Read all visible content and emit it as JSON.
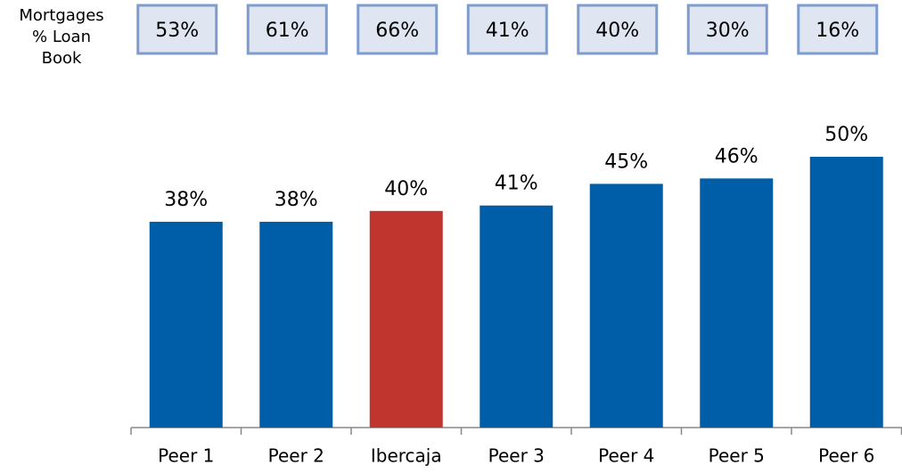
{
  "chart_data": {
    "type": "bar",
    "categories": [
      "Peer 1",
      "Peer 2",
      "Ibercaja",
      "Peer 3",
      "Peer 4",
      "Peer 5",
      "Peer 6"
    ],
    "values": [
      38,
      38,
      40,
      41,
      45,
      46,
      50
    ],
    "value_labels": [
      "38%",
      "38%",
      "40%",
      "41%",
      "45%",
      "46%",
      "50%"
    ],
    "colors": [
      "#005ea8",
      "#005ea8",
      "#c1352f",
      "#005ea8",
      "#005ea8",
      "#005ea8",
      "#005ea8"
    ],
    "mortgages": {
      "label": "Mortgages % Loan Book",
      "values": [
        53,
        61,
        66,
        41,
        40,
        30,
        16
      ],
      "value_labels": [
        "53%",
        "61%",
        "66%",
        "41%",
        "40%",
        "30%",
        "16%"
      ]
    }
  }
}
